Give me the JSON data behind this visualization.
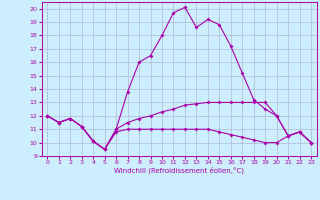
{
  "xlabel": "Windchill (Refroidissement éolien,°C)",
  "xlim": [
    -0.5,
    23.5
  ],
  "ylim": [
    9,
    20.5
  ],
  "yticks": [
    9,
    10,
    11,
    12,
    13,
    14,
    15,
    16,
    17,
    18,
    19,
    20
  ],
  "xticks": [
    0,
    1,
    2,
    3,
    4,
    5,
    6,
    7,
    8,
    9,
    10,
    11,
    12,
    13,
    14,
    15,
    16,
    17,
    18,
    19,
    20,
    21,
    22,
    23
  ],
  "background_color": "#cceeff",
  "line_color": "#aa00aa",
  "grid_color": "#aaaacc",
  "line1_x": [
    0,
    1,
    2,
    3,
    4,
    5,
    6,
    7,
    8,
    9,
    10,
    11,
    12,
    13,
    14,
    15,
    16,
    17,
    18,
    19,
    20,
    21,
    22,
    23
  ],
  "line1_y": [
    12,
    11.5,
    11.8,
    11.2,
    10.1,
    9.5,
    11.0,
    13.8,
    16.0,
    16.5,
    18.0,
    19.7,
    20.1,
    18.6,
    19.2,
    18.8,
    17.2,
    15.2,
    13.2,
    12.5,
    12.0,
    10.5,
    10.8,
    10.0
  ],
  "line2_x": [
    0,
    1,
    2,
    3,
    4,
    5,
    6,
    7,
    8,
    9,
    10,
    11,
    12,
    13,
    14,
    15,
    16,
    17,
    18,
    19,
    20,
    21,
    22,
    23
  ],
  "line2_y": [
    12.0,
    11.5,
    11.8,
    11.2,
    10.1,
    9.5,
    11.0,
    11.5,
    11.8,
    12.0,
    12.3,
    12.5,
    12.8,
    12.9,
    13.0,
    13.0,
    13.0,
    13.0,
    13.0,
    13.0,
    12.0,
    10.5,
    10.8,
    10.0
  ],
  "line3_x": [
    0,
    1,
    2,
    3,
    4,
    5,
    6,
    7,
    8,
    9,
    10,
    11,
    12,
    13,
    14,
    15,
    16,
    17,
    18,
    19,
    20,
    21,
    22,
    23
  ],
  "line3_y": [
    12.0,
    11.5,
    11.8,
    11.2,
    10.1,
    9.5,
    10.8,
    11.0,
    11.0,
    11.0,
    11.0,
    11.0,
    11.0,
    11.0,
    11.0,
    10.8,
    10.6,
    10.4,
    10.2,
    10.0,
    10.0,
    10.5,
    10.8,
    10.0
  ]
}
